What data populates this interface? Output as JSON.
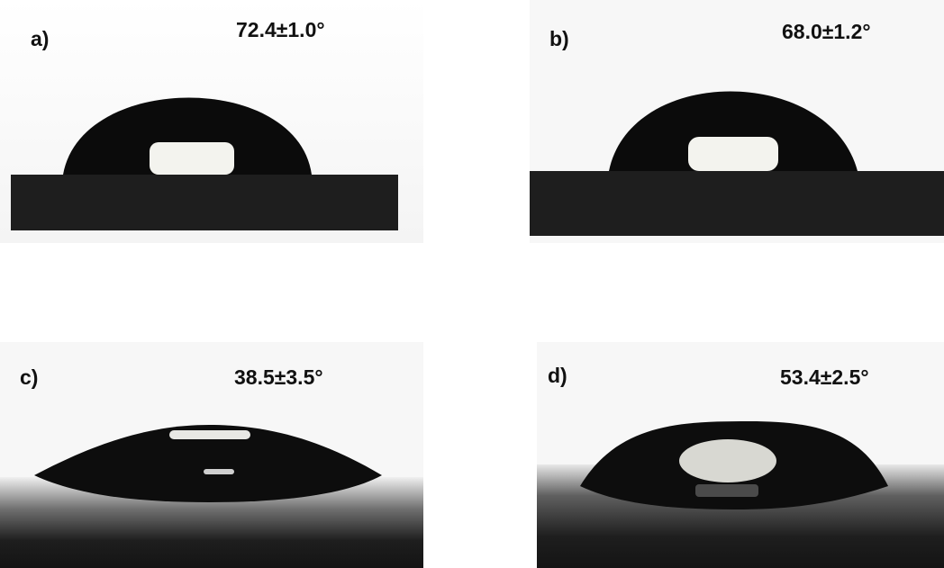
{
  "panels": [
    {
      "label": "a)",
      "angle": "72.4±1.0°"
    },
    {
      "label": "b)",
      "angle": "68.0±1.2°"
    },
    {
      "label": "c)",
      "angle": "38.5±3.5°"
    },
    {
      "label": "d)",
      "angle": "53.4±2.5°"
    }
  ],
  "colors": {
    "drop": "#0a0a0a",
    "substrate": "#1c1c1c",
    "background": "#f6f6f6",
    "highlight": "#f2f2ee"
  }
}
